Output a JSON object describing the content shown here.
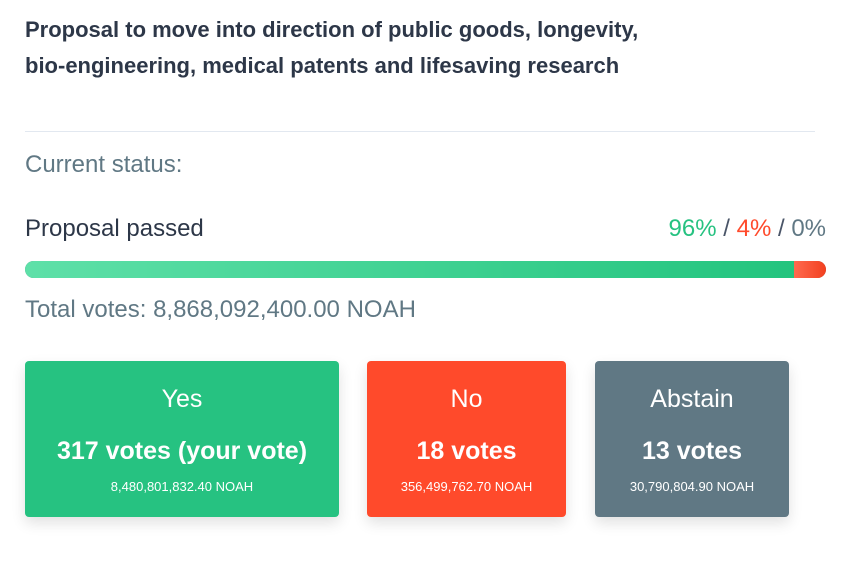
{
  "proposal": {
    "title": "Proposal to move into direction of public goods, longevity, bio-engineering, medical patents and lifesaving research"
  },
  "status": {
    "label": "Current status:",
    "result": "Proposal passed",
    "yes_pct": "96%",
    "no_pct": "4%",
    "abstain_pct": "0%",
    "separator": "/",
    "bar_fractions": {
      "yes": 0.96,
      "no": 0.04,
      "abstain": 0.0
    },
    "total_votes": "Total votes: 8,868,092,400.00 NOAH"
  },
  "options": [
    {
      "label": "Yes",
      "votes": "317 votes (your vote)",
      "amount": "8,480,801,832.40 NOAH"
    },
    {
      "label": "No",
      "votes": "18 votes",
      "amount": "356,499,762.70 NOAH"
    },
    {
      "label": "Abstain",
      "votes": "13 votes",
      "amount": "30,790,804.90 NOAH"
    }
  ],
  "colors": {
    "yes": "#26c281",
    "no": "#ff4a2b",
    "abstain": "#607884",
    "text": "#2d3748"
  }
}
